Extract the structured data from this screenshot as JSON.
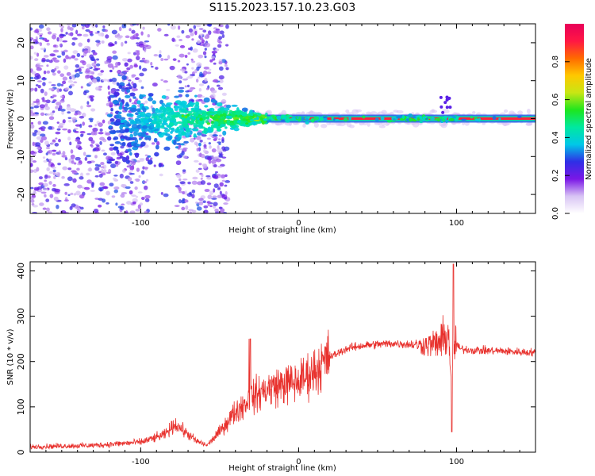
{
  "title": "S115.2023.157.10.23.G03",
  "chart_data": [
    {
      "type": "heatmap",
      "name": "spectrogram",
      "xlabel": "Height of straight line (km)",
      "ylabel": "Frequency (Hz)",
      "xlim": [
        -170,
        150
      ],
      "ylim": [
        -25,
        25
      ],
      "xticks": [
        -100,
        0,
        100
      ],
      "yticks": [
        -20,
        -10,
        0,
        10,
        20
      ],
      "colorbar": {
        "label": "Normalized spectral amplitude",
        "range": [
          0,
          1
        ],
        "ticks": [
          0.0,
          0.2,
          0.4,
          0.6,
          0.8
        ],
        "colormap": [
          "#ffffff",
          "#d8c4f4",
          "#7a17e6",
          "#2f2fe6",
          "#00c8e8",
          "#00e8a0",
          "#1ee61e",
          "#c8e614",
          "#ffc800",
          "#ff6a00",
          "#ff1744",
          "#e8005a"
        ]
      },
      "signal_band": {
        "center_frequency_hz": 0,
        "strong_from_km": -20,
        "strong_to_km": 150,
        "noise_region_km": [
          -170,
          -55
        ]
      }
    },
    {
      "type": "line",
      "name": "snr",
      "xlabel": "Height of straight line (km)",
      "ylabel": "SNR (10 * v/v)",
      "xlim": [
        -170,
        150
      ],
      "ylim": [
        0,
        420
      ],
      "xticks": [
        -100,
        0,
        100
      ],
      "yticks": [
        0,
        100,
        200,
        300,
        400
      ],
      "color": "#e8312d",
      "series": [
        {
          "name": "SNR",
          "profile_x": [
            -170,
            -130,
            -100,
            -85,
            -78,
            -72,
            -65,
            -58,
            -50,
            -40,
            -30,
            -20,
            -10,
            0,
            10,
            20,
            30,
            40,
            50,
            60,
            70,
            80,
            88,
            92,
            95,
            97,
            99,
            102,
            110,
            120,
            130,
            140,
            150
          ],
          "profile_y": [
            12,
            15,
            22,
            38,
            62,
            45,
            25,
            15,
            45,
            90,
            120,
            140,
            150,
            155,
            180,
            210,
            228,
            235,
            238,
            240,
            238,
            236,
            240,
            250,
            260,
            150,
            245,
            228,
            225,
            224,
            223,
            221,
            220
          ],
          "peak": {
            "x": 98,
            "y": 415
          },
          "dip": {
            "x": 97,
            "y": 45
          }
        }
      ]
    }
  ]
}
